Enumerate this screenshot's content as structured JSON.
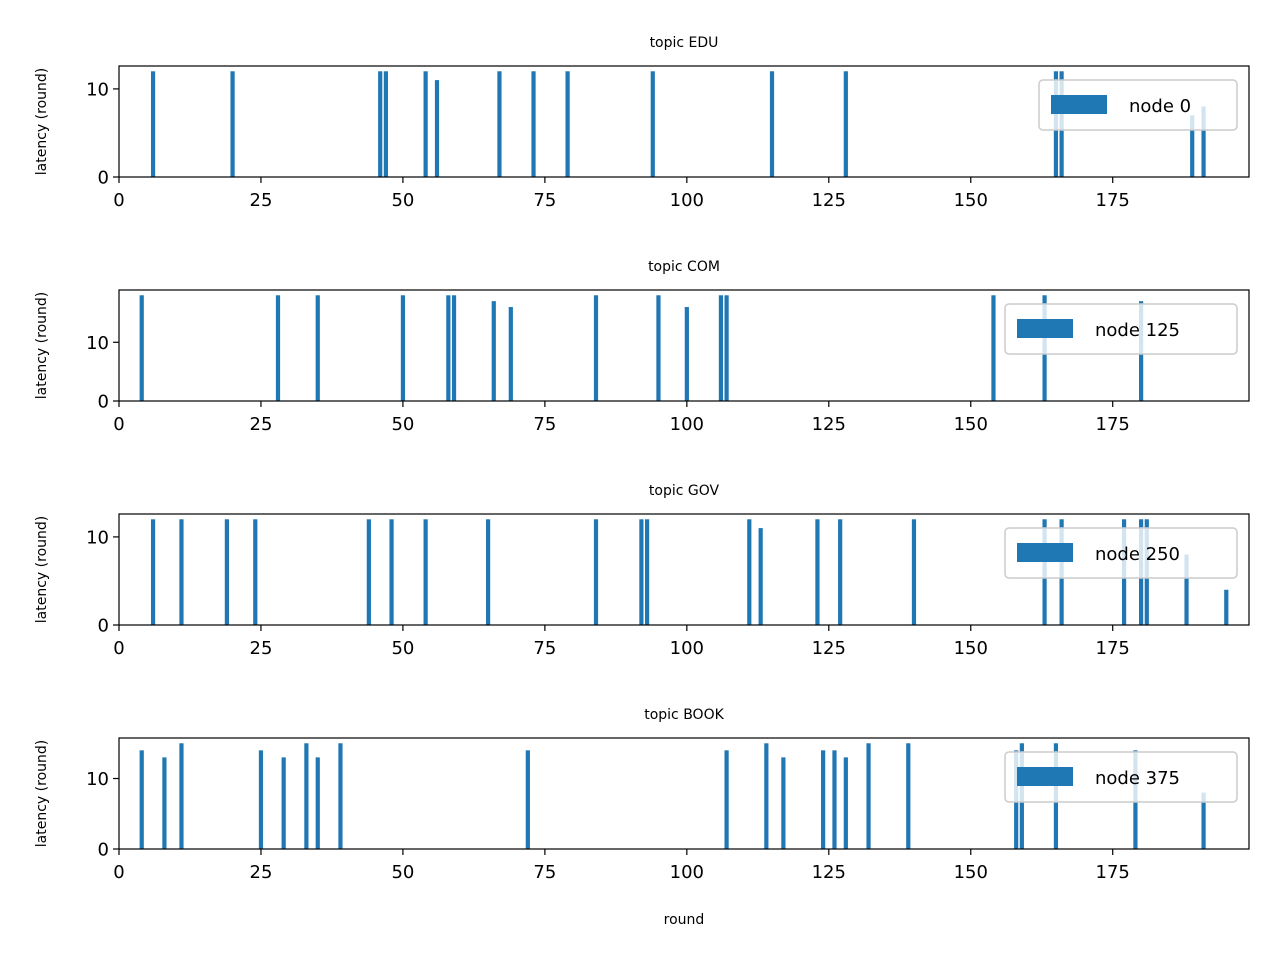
{
  "figure": {
    "xlabel": "round",
    "bar_color": "#1f77b4"
  },
  "chart_data": [
    {
      "type": "bar",
      "title": "topic EDU",
      "ylabel": "latency (round)",
      "xlim": [
        0,
        199
      ],
      "ylim": [
        0,
        12.6
      ],
      "xticks": [
        0,
        25,
        50,
        75,
        100,
        125,
        150,
        175
      ],
      "yticks": [
        0,
        10
      ],
      "grid": false,
      "legend": {
        "label": "node 0",
        "position": "right"
      },
      "x": [
        6,
        20,
        46,
        47,
        54,
        56,
        67,
        73,
        79,
        94,
        115,
        128,
        165,
        166,
        189,
        191
      ],
      "values": [
        12,
        12,
        12,
        12,
        12,
        11,
        12,
        12,
        12,
        12,
        12,
        12,
        12,
        12,
        7,
        8
      ]
    },
    {
      "type": "bar",
      "title": "topic COM",
      "ylabel": "latency (round)",
      "xlim": [
        0,
        199
      ],
      "ylim": [
        0,
        18.9
      ],
      "xticks": [
        0,
        25,
        50,
        75,
        100,
        125,
        150,
        175
      ],
      "yticks": [
        0,
        10
      ],
      "grid": false,
      "legend": {
        "label": "node 125",
        "position": "right"
      },
      "x": [
        4,
        28,
        35,
        50,
        58,
        59,
        66,
        69,
        84,
        95,
        100,
        106,
        107,
        154,
        163,
        180
      ],
      "values": [
        18,
        18,
        18,
        18,
        18,
        18,
        17,
        16,
        18,
        18,
        16,
        18,
        18,
        18,
        18,
        17
      ]
    },
    {
      "type": "bar",
      "title": "topic GOV",
      "ylabel": "latency (round)",
      "xlim": [
        0,
        199
      ],
      "ylim": [
        0,
        12.6
      ],
      "xticks": [
        0,
        25,
        50,
        75,
        100,
        125,
        150,
        175
      ],
      "yticks": [
        0,
        10
      ],
      "grid": false,
      "legend": {
        "label": "node 250",
        "position": "right"
      },
      "x": [
        6,
        11,
        19,
        24,
        44,
        48,
        54,
        65,
        84,
        92,
        93,
        111,
        113,
        123,
        127,
        140,
        163,
        166,
        177,
        180,
        181,
        188,
        195
      ],
      "values": [
        12,
        12,
        12,
        12,
        12,
        12,
        12,
        12,
        12,
        12,
        12,
        12,
        11,
        12,
        12,
        12,
        12,
        12,
        12,
        12,
        12,
        8,
        4
      ]
    },
    {
      "type": "bar",
      "title": "topic BOOK",
      "ylabel": "latency (round)",
      "xlim": [
        0,
        199
      ],
      "ylim": [
        0,
        15.75
      ],
      "xticks": [
        0,
        25,
        50,
        75,
        100,
        125,
        150,
        175
      ],
      "yticks": [
        0,
        10
      ],
      "grid": false,
      "legend": {
        "label": "node 375",
        "position": "right"
      },
      "x": [
        4,
        8,
        11,
        25,
        29,
        33,
        35,
        39,
        72,
        107,
        114,
        117,
        124,
        126,
        128,
        132,
        139,
        158,
        159,
        165,
        179,
        191
      ],
      "values": [
        14,
        13,
        15,
        14,
        13,
        15,
        13,
        15,
        14,
        14,
        15,
        13,
        14,
        14,
        13,
        15,
        15,
        14,
        15,
        15,
        14,
        8
      ]
    }
  ]
}
